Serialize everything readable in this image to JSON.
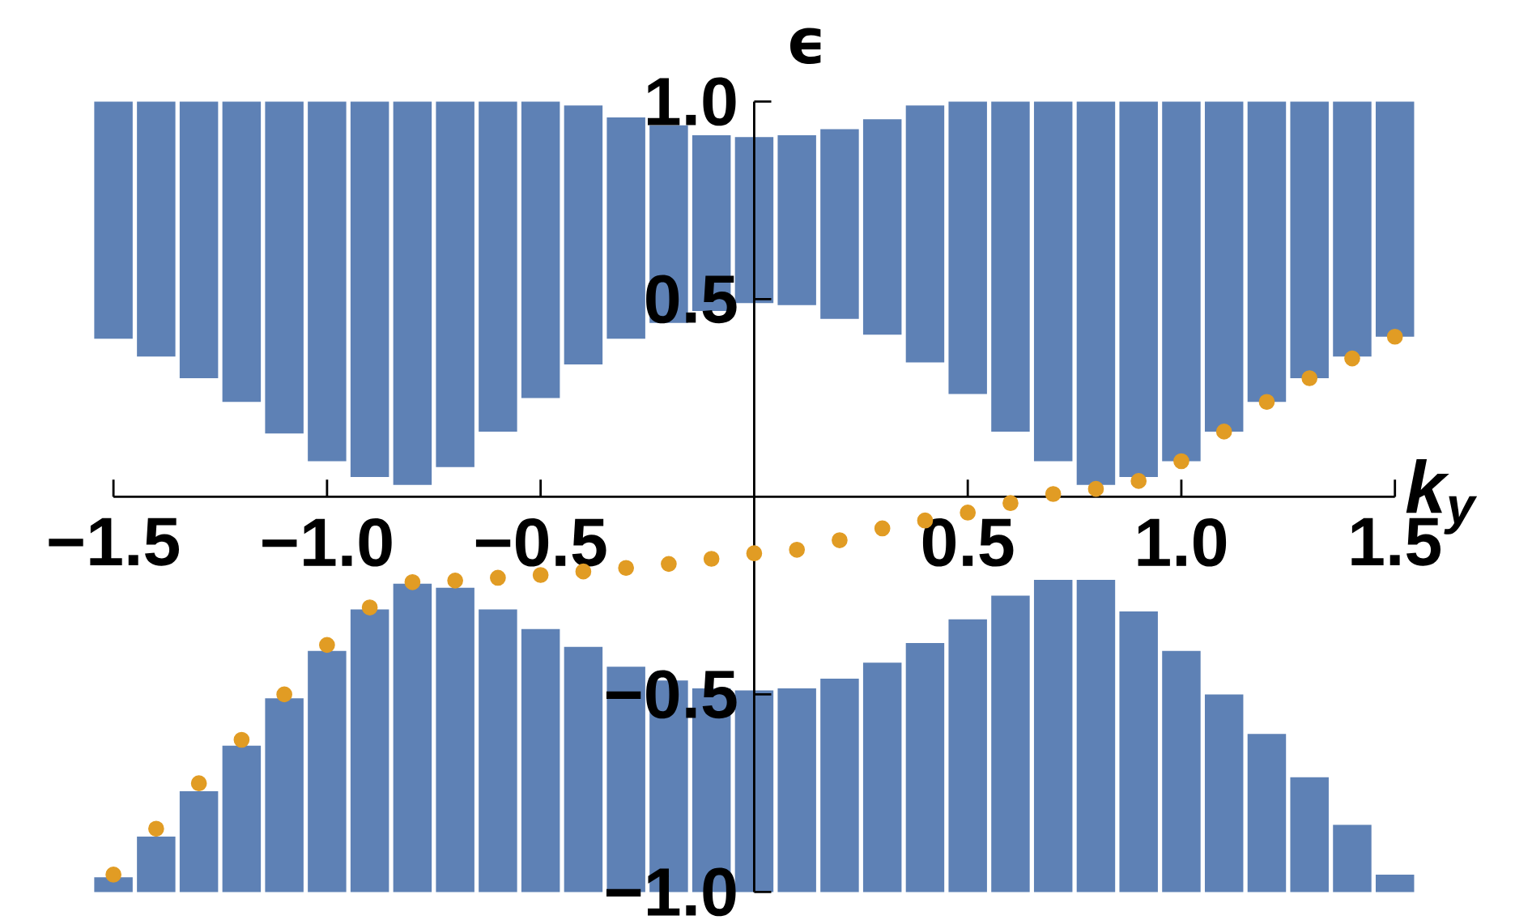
{
  "chart_data": {
    "type": "bar",
    "xlabel": "k$_{y}$",
    "ylabel": "ϵ",
    "x": [
      -1.5,
      -1.4,
      -1.3,
      -1.2,
      -1.1,
      -1.0,
      -0.9,
      -0.8,
      -0.7,
      -0.6,
      -0.5,
      -0.4,
      -0.3,
      -0.2,
      -0.1,
      0,
      0.1,
      0.2,
      0.3,
      0.4,
      0.5,
      0.6,
      0.7,
      0.8,
      0.9,
      1.0,
      1.1,
      1.2,
      1.3,
      1.4,
      1.5
    ],
    "series": [
      {
        "color": "#5e81b5",
        "base": [
          0.4,
          0.355,
          0.3,
          0.24,
          0.16,
          0.09,
          0.05,
          0.03,
          0.075,
          0.165,
          0.25,
          0.335,
          0.4,
          0.44,
          0.47,
          0.49,
          0.485,
          0.45,
          0.41,
          0.34,
          0.26,
          0.165,
          0.09,
          0.03,
          0.05,
          0.09,
          0.165,
          0.24,
          0.3,
          0.355,
          0.405
        ],
        "values": [
          0.6,
          0.645,
          0.7,
          0.76,
          0.84,
          0.91,
          0.95,
          0.97,
          0.925,
          0.835,
          0.75,
          0.655,
          0.56,
          0.5,
          0.445,
          0.42,
          0.43,
          0.48,
          0.545,
          0.65,
          0.74,
          0.835,
          0.91,
          0.97,
          0.95,
          0.91,
          0.835,
          0.76,
          0.7,
          0.645,
          0.595
        ]
      },
      {
        "color": "#5e81b5",
        "base": [
          -1,
          -1,
          -1,
          -1,
          -1,
          -1,
          -1,
          -1,
          -1,
          -1,
          -1,
          -1,
          -1,
          -1,
          -1,
          -1,
          -1,
          -1,
          -1,
          -1,
          -1,
          -1,
          -1,
          -1,
          -1,
          -1,
          -1,
          -1,
          -1,
          -1,
          -1
        ],
        "values": [
          0.037,
          0.14,
          0.255,
          0.37,
          0.49,
          0.61,
          0.715,
          0.78,
          0.77,
          0.715,
          0.665,
          0.62,
          0.57,
          0.535,
          0.515,
          0.51,
          0.515,
          0.54,
          0.58,
          0.63,
          0.69,
          0.75,
          0.79,
          0.79,
          0.71,
          0.61,
          0.5,
          0.4,
          0.29,
          0.17,
          0.044
        ]
      },
      {
        "type": "scatter",
        "color": "#e19c24",
        "values": [
          -0.956,
          -0.84,
          -0.725,
          -0.615,
          -0.5,
          -0.375,
          -0.28,
          -0.216,
          -0.212,
          -0.205,
          -0.198,
          -0.189,
          -0.18,
          -0.17,
          -0.157,
          -0.143,
          -0.134,
          -0.11,
          -0.08,
          -0.06,
          -0.04,
          -0.016,
          0.007,
          0.02,
          0.04,
          0.09,
          0.165,
          0.24,
          0.3,
          0.35,
          0.405
        ]
      }
    ],
    "xlim": [
      -1.5,
      1.5
    ],
    "ylim": [
      -1,
      1
    ],
    "xticks": [
      {
        "value": -1.5,
        "label": "−1.5"
      },
      {
        "value": -1.0,
        "label": "−1.0"
      },
      {
        "value": -0.5,
        "label": "−0.5"
      },
      {
        "value": 0.5,
        "label": "0.5"
      },
      {
        "value": 1.0,
        "label": "1.0"
      },
      {
        "value": 1.5,
        "label": "1.5"
      }
    ],
    "yticks": [
      {
        "value": -1.0,
        "label": "−1.0"
      },
      {
        "value": -0.5,
        "label": "−0.5"
      },
      {
        "value": 0.5,
        "label": "0.5"
      },
      {
        "value": 1.0,
        "label": "1.0"
      }
    ],
    "grid": false
  }
}
